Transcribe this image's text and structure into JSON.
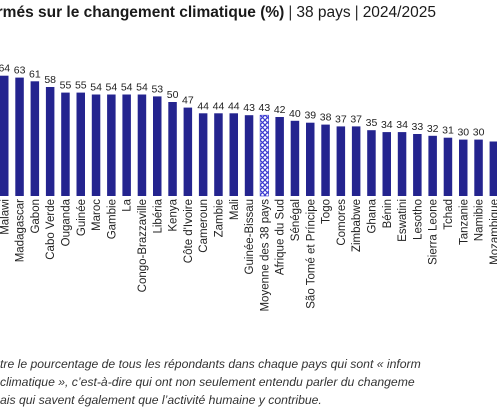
{
  "header": {
    "title_main": "formés sur le changement climatique (%)",
    "sep": "|",
    "countries": "38 pays",
    "period": "2024/2025"
  },
  "footnote": {
    "line1": "tre le pourcentage de tous les répondants dans chaque pays qui sont « inform",
    "line2": "climatique », c’est-à-dire qui ont non seulement entendu parler du changeme",
    "line3": "ais qui savent également que l’activité humaine y contribue."
  },
  "colors": {
    "bar": "#24248f",
    "average_bar_pattern": "#3a3ad0",
    "text": "#222222"
  },
  "chart_data": {
    "type": "bar",
    "categories": [
      "Malawi",
      "Madagascar",
      "Gabon",
      "Cabo Verde",
      "Ouganda",
      "Guinée",
      "Maroc",
      "Gambie",
      "La",
      "Congo-Brazzaville",
      "Libéria",
      "Kenya",
      "Côte d'Ivoire",
      "Cameroun",
      "Zambie",
      "Mali",
      "Guinée-Bissau",
      "Moyenne des 38 pays",
      "Afrique du Sud",
      "Sénégal",
      "São Tomé et Príncipe",
      "Togo",
      "Comores",
      "Zimbabwe",
      "Ghana",
      "Bénin",
      "Eswatini",
      "Lesotho",
      "Sierra Leone",
      "Tchad",
      "Tanzanie",
      "Namibie",
      "Mozambique"
    ],
    "values": [
      64,
      63,
      61,
      58,
      55,
      55,
      54,
      54,
      54,
      54,
      53,
      50,
      47,
      44,
      44,
      44,
      43,
      43,
      42,
      40,
      39,
      38,
      37,
      37,
      35,
      34,
      34,
      33,
      32,
      31,
      30,
      30,
      29
    ],
    "value_labels": [
      "64",
      "63",
      "61",
      "58",
      "55",
      "55",
      "54",
      "54",
      "54",
      "54",
      "53",
      "50",
      "47",
      "44",
      "44",
      "44",
      "43",
      "43",
      "42",
      "40",
      "39",
      "38",
      "37",
      "37",
      "35",
      "34",
      "34",
      "33",
      "32",
      "31",
      "30",
      "30",
      ""
    ],
    "highlight_category": "Moyenne des 38 pays",
    "ylim": [
      0,
      70
    ],
    "grid": false,
    "legend": "none"
  }
}
